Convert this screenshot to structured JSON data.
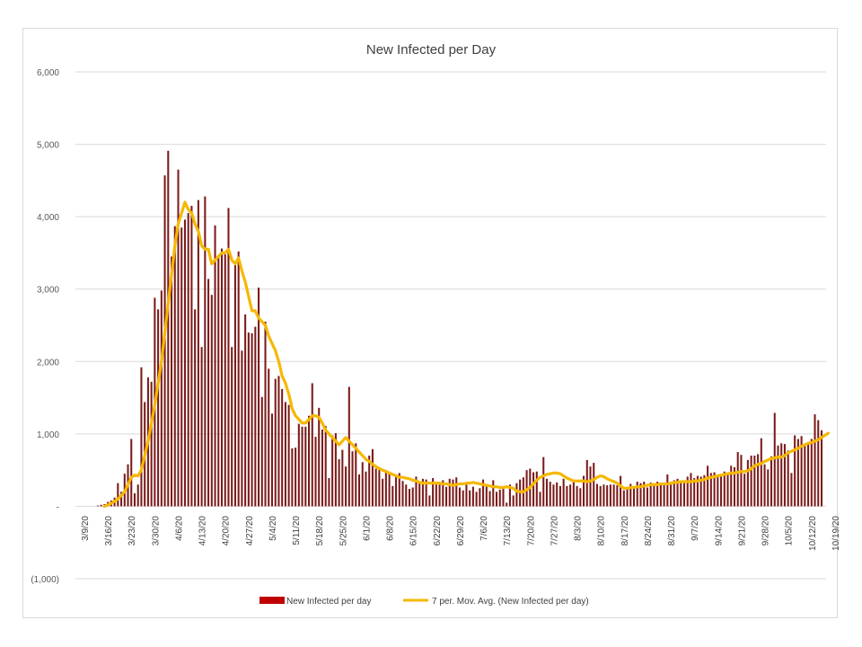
{
  "chart_data": {
    "type": "bar",
    "title": "New Infected per Day",
    "xlabel": "",
    "ylabel": "",
    "ylim": [
      -1000,
      6000
    ],
    "y_ticks": [
      6000,
      5000,
      4000,
      3000,
      2000,
      1000,
      0,
      -1000
    ],
    "y_tick_labels": [
      "6,000",
      "5,000",
      "4,000",
      "3,000",
      "2,000",
      "1,000",
      "-",
      "(1,000)"
    ],
    "gridlines": true,
    "legend_position": "bottom",
    "start_date": "3/9/20",
    "x_tick_labels": [
      "3/9/20",
      "3/16/20",
      "3/23/20",
      "3/30/20",
      "4/6/20",
      "4/13/20",
      "4/20/20",
      "4/27/20",
      "5/4/20",
      "5/11/20",
      "5/18/20",
      "5/25/20",
      "6/1/20",
      "6/8/20",
      "6/15/20",
      "6/22/20",
      "6/29/20",
      "7/6/20",
      "7/13/20",
      "7/20/20",
      "7/27/20",
      "8/3/20",
      "8/10/20",
      "8/17/20",
      "8/24/20",
      "8/31/20",
      "9/7/20",
      "9/14/20",
      "9/21/20",
      "9/28/20",
      "10/5/20",
      "10/12/20",
      "10/19/20"
    ],
    "series": [
      {
        "name": "New Infected per day",
        "kind": "bar",
        "color": "#7b1a1a",
        "values": [
          0,
          0,
          0,
          0,
          10,
          20,
          30,
          60,
          80,
          120,
          320,
          200,
          450,
          580,
          930,
          180,
          300,
          1920,
          1440,
          1780,
          1720,
          2880,
          2720,
          2980,
          4570,
          4910,
          3450,
          3870,
          4650,
          3850,
          3960,
          4050,
          4150,
          2720,
          4230,
          2200,
          4280,
          3140,
          2920,
          3880,
          3440,
          3560,
          3480,
          4120,
          2200,
          3330,
          3520,
          2150,
          2650,
          2400,
          2390,
          2480,
          3020,
          1510,
          2550,
          1900,
          1280,
          1760,
          1800,
          1620,
          1440,
          1400,
          800,
          810,
          1140,
          1100,
          1100,
          1250,
          1700,
          960,
          1360,
          1060,
          1110,
          390,
          980,
          1010,
          650,
          780,
          550,
          1650,
          760,
          870,
          440,
          610,
          480,
          700,
          790,
          520,
          540,
          380,
          500,
          470,
          280,
          440,
          460,
          350,
          300,
          240,
          260,
          410,
          320,
          380,
          370,
          150,
          390,
          300,
          300,
          360,
          270,
          380,
          370,
          400,
          260,
          220,
          300,
          220,
          270,
          200,
          250,
          370,
          280,
          210,
          360,
          200,
          230,
          260,
          50,
          300,
          150,
          320,
          370,
          400,
          500,
          520,
          470,
          480,
          200,
          680,
          380,
          340,
          300,
          330,
          280,
          380,
          280,
          300,
          350,
          280,
          250,
          420,
          640,
          550,
          600,
          310,
          280,
          300,
          290,
          300,
          300,
          290,
          420,
          220,
          240,
          310,
          260,
          340,
          320,
          340,
          260,
          330,
          310,
          340,
          300,
          290,
          440,
          300,
          360,
          380,
          350,
          320,
          410,
          460,
          390,
          420,
          410,
          430,
          560,
          460,
          470,
          430,
          420,
          480,
          450,
          560,
          540,
          750,
          710,
          450,
          640,
          700,
          700,
          720,
          940,
          580,
          510,
          690,
          1290,
          840,
          870,
          860,
          770,
          460,
          980,
          930,
          970,
          850,
          880,
          930,
          1270,
          1190,
          1050
        ]
      },
      {
        "name": "7 per. Mov. Avg. (New Infected per day)",
        "kind": "line",
        "color": "#f5b800",
        "values": [
          null,
          null,
          null,
          null,
          null,
          null,
          0,
          20,
          40,
          70,
          100,
          150,
          200,
          300,
          400,
          430,
          420,
          500,
          700,
          900,
          1150,
          1400,
          1700,
          2000,
          2400,
          2800,
          3200,
          3600,
          3900,
          4050,
          4200,
          4100,
          4050,
          3900,
          3800,
          3600,
          3550,
          3550,
          3350,
          3400,
          3450,
          3500,
          3500,
          3550,
          3400,
          3350,
          3430,
          3250,
          3100,
          2900,
          2700,
          2700,
          2600,
          2550,
          2500,
          2350,
          2250,
          2150,
          2000,
          1800,
          1700,
          1550,
          1350,
          1250,
          1200,
          1150,
          1150,
          1200,
          1250,
          1250,
          1230,
          1150,
          1050,
          1000,
          950,
          900,
          850,
          900,
          950,
          900,
          850,
          800,
          750,
          700,
          650,
          620,
          580,
          550,
          520,
          500,
          480,
          460,
          440,
          420,
          400,
          400,
          390,
          380,
          360,
          350,
          330,
          320,
          320,
          320,
          320,
          320,
          320,
          310,
          310,
          300,
          290,
          300,
          310,
          310,
          320,
          320,
          330,
          320,
          310,
          300,
          290,
          280,
          270,
          270,
          260,
          260,
          270,
          260,
          250,
          210,
          200,
          200,
          230,
          260,
          310,
          360,
          400,
          420,
          440,
          450,
          460,
          460,
          450,
          420,
          390,
          370,
          350,
          350,
          350,
          350,
          340,
          350,
          370,
          400,
          420,
          410,
          380,
          360,
          340,
          320,
          280,
          250,
          250,
          260,
          260,
          270,
          270,
          280,
          290,
          300,
          300,
          300,
          310,
          310,
          310,
          320,
          330,
          330,
          340,
          340,
          340,
          340,
          350,
          350,
          360,
          370,
          390,
          400,
          410,
          420,
          430,
          440,
          450,
          460,
          460,
          470,
          480,
          480,
          490,
          520,
          560,
          580,
          590,
          620,
          640,
          660,
          670,
          680,
          680,
          700,
          740,
          760,
          780,
          800,
          830,
          850,
          870,
          880,
          900,
          920,
          950,
          980,
          1010
        ]
      }
    ]
  }
}
